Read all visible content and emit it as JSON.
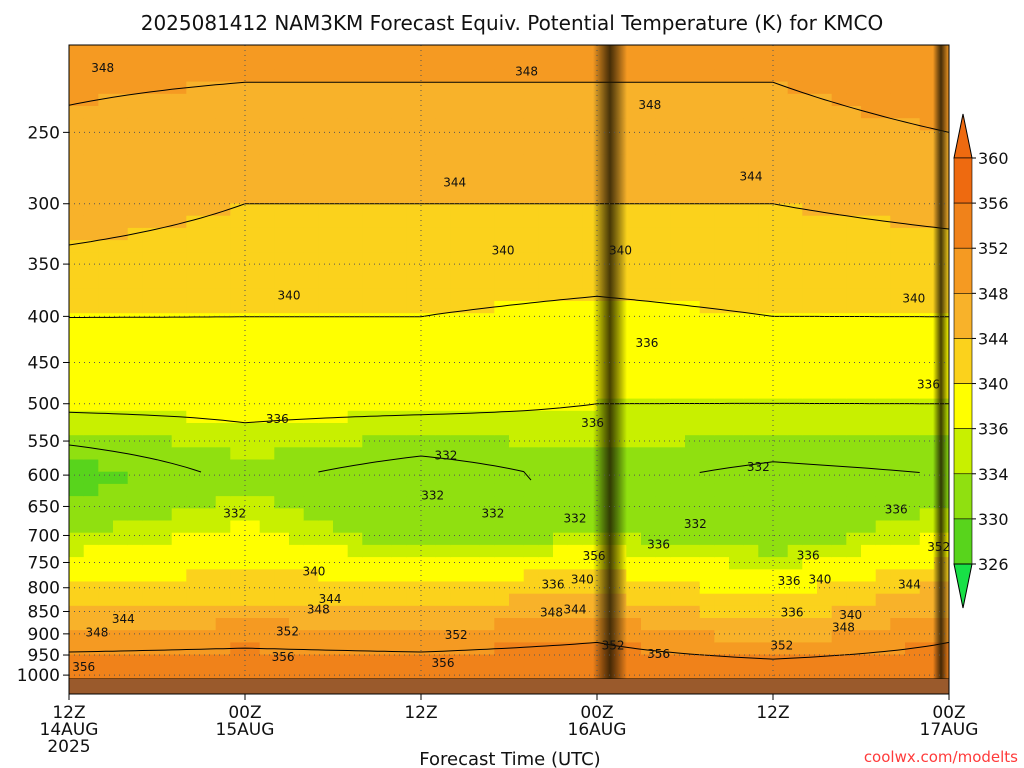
{
  "chart_data": {
    "type": "heatmap",
    "title": "2025081412 NAM3KM Forecast Equiv. Potential Temperature (K) for KMCO",
    "xlabel": "Forecast Time (UTC)",
    "ylabel": "",
    "credit": "coolwx.com/modelts",
    "x_ticks": [
      {
        "hour": 0,
        "lines": [
          "12Z",
          "14AUG",
          "2025"
        ]
      },
      {
        "hour": 12,
        "lines": [
          "00Z",
          "15AUG"
        ]
      },
      {
        "hour": 24,
        "lines": [
          "12Z"
        ]
      },
      {
        "hour": 36,
        "lines": [
          "00Z",
          "16AUG"
        ]
      },
      {
        "hour": 48,
        "lines": [
          "12Z"
        ]
      },
      {
        "hour": 60,
        "lines": [
          "00Z",
          "17AUG"
        ]
      }
    ],
    "xlim": [
      0,
      60
    ],
    "y_ticks": [
      250,
      300,
      350,
      400,
      450,
      500,
      550,
      600,
      650,
      700,
      750,
      800,
      850,
      900,
      950,
      1000
    ],
    "ylim": [
      200,
      1010
    ],
    "y_scale": "log",
    "y_inverted": true,
    "grid": true,
    "colorbar": {
      "ticks": [
        360,
        356,
        352,
        348,
        344,
        340,
        336,
        334,
        330,
        326
      ],
      "colors": [
        "#ee6a10",
        "#f0821a",
        "#f59a22",
        "#f8b22a",
        "#fbd21c",
        "#ffff00",
        "#c8f000",
        "#90e010",
        "#58d41c",
        "#18e046"
      ],
      "extend": "both"
    },
    "contour_levels": [
      332,
      336,
      340,
      344,
      348,
      352,
      356
    ],
    "profiles": [
      {
        "hour": 0,
        "theta": {
          "200": 349,
          "300": 346,
          "400": 340,
          "500": 337,
          "600": 328,
          "700": 334,
          "800": 340,
          "900": 349,
          "1000": 356
        }
      },
      {
        "hour": 12,
        "theta": {
          "200": 349,
          "300": 344,
          "400": 340,
          "500": 337,
          "600": 333,
          "700": 337,
          "800": 342,
          "900": 350,
          "1000": 356
        }
      },
      {
        "hour": 24,
        "theta": {
          "200": 349,
          "300": 344,
          "400": 340,
          "500": 337,
          "600": 330,
          "700": 332,
          "800": 341,
          "900": 349,
          "1000": 356
        }
      },
      {
        "hour": 36,
        "theta": {
          "200": 349,
          "300": 344,
          "400": 339,
          "500": 336,
          "600": 333,
          "700": 334,
          "800": 343,
          "900": 351,
          "1000": 356
        }
      },
      {
        "hour": 48,
        "theta": {
          "200": 349,
          "300": 344,
          "400": 340,
          "500": 336,
          "600": 331,
          "700": 332,
          "800": 338,
          "900": 346,
          "1000": 356
        }
      },
      {
        "hour": 60,
        "theta": {
          "200": 351,
          "300": 345,
          "400": 340,
          "500": 336,
          "600": 332,
          "700": 336,
          "800": 345,
          "900": 351,
          "1000": 356
        }
      }
    ],
    "contour_labels": [
      {
        "value": "348",
        "hour": 2.3,
        "p": 212
      },
      {
        "value": "348",
        "hour": 31.2,
        "p": 214
      },
      {
        "value": "348",
        "hour": 39.6,
        "p": 233
      },
      {
        "value": "344",
        "hour": 26.3,
        "p": 284
      },
      {
        "value": "344",
        "hour": 46.5,
        "p": 280
      },
      {
        "value": "340",
        "hour": 29.6,
        "p": 338
      },
      {
        "value": "340",
        "hour": 37.6,
        "p": 338
      },
      {
        "value": "340",
        "hour": 15.0,
        "p": 379
      },
      {
        "value": "340",
        "hour": 57.6,
        "p": 382
      },
      {
        "value": "336",
        "hour": 39.4,
        "p": 428
      },
      {
        "value": "336",
        "hour": 58.6,
        "p": 476
      },
      {
        "value": "336",
        "hour": 14.2,
        "p": 520
      },
      {
        "value": "336",
        "hour": 35.7,
        "p": 525
      },
      {
        "value": "332",
        "hour": 25.7,
        "p": 571
      },
      {
        "value": "332",
        "hour": 47.0,
        "p": 588
      },
      {
        "value": "332",
        "hour": 24.8,
        "p": 632
      },
      {
        "value": "332",
        "hour": 11.3,
        "p": 662
      },
      {
        "value": "332",
        "hour": 28.9,
        "p": 662
      },
      {
        "value": "332",
        "hour": 34.5,
        "p": 670
      },
      {
        "value": "332",
        "hour": 42.7,
        "p": 680
      },
      {
        "value": "336",
        "hour": 56.4,
        "p": 655
      },
      {
        "value": "336",
        "hour": 40.2,
        "p": 716
      },
      {
        "value": "356",
        "hour": 35.8,
        "p": 738
      },
      {
        "value": "336",
        "hour": 50.4,
        "p": 737
      },
      {
        "value": "352",
        "hour": 59.3,
        "p": 721
      },
      {
        "value": "340",
        "hour": 16.7,
        "p": 767
      },
      {
        "value": "340",
        "hour": 35.0,
        "p": 783
      },
      {
        "value": "336",
        "hour": 33.0,
        "p": 793
      },
      {
        "value": "336",
        "hour": 49.1,
        "p": 786
      },
      {
        "value": "340",
        "hour": 51.2,
        "p": 783
      },
      {
        "value": "344",
        "hour": 57.3,
        "p": 793
      },
      {
        "value": "344",
        "hour": 17.8,
        "p": 823
      },
      {
        "value": "348",
        "hour": 17.0,
        "p": 846
      },
      {
        "value": "348",
        "hour": 32.9,
        "p": 852
      },
      {
        "value": "344",
        "hour": 34.5,
        "p": 846
      },
      {
        "value": "344",
        "hour": 3.7,
        "p": 867
      },
      {
        "value": "336",
        "hour": 49.3,
        "p": 852
      },
      {
        "value": "340",
        "hour": 53.3,
        "p": 858
      },
      {
        "value": "348",
        "hour": 52.8,
        "p": 885
      },
      {
        "value": "348",
        "hour": 1.9,
        "p": 897
      },
      {
        "value": "352",
        "hour": 14.9,
        "p": 895
      },
      {
        "value": "352",
        "hour": 26.4,
        "p": 903
      },
      {
        "value": "352",
        "hour": 37.1,
        "p": 927
      },
      {
        "value": "352",
        "hour": 48.6,
        "p": 927
      },
      {
        "value": "356",
        "hour": 14.6,
        "p": 955
      },
      {
        "value": "356",
        "hour": 40.2,
        "p": 947
      },
      {
        "value": "356",
        "hour": 25.5,
        "p": 969
      },
      {
        "value": "356",
        "hour": 1.0,
        "p": 980
      }
    ]
  }
}
